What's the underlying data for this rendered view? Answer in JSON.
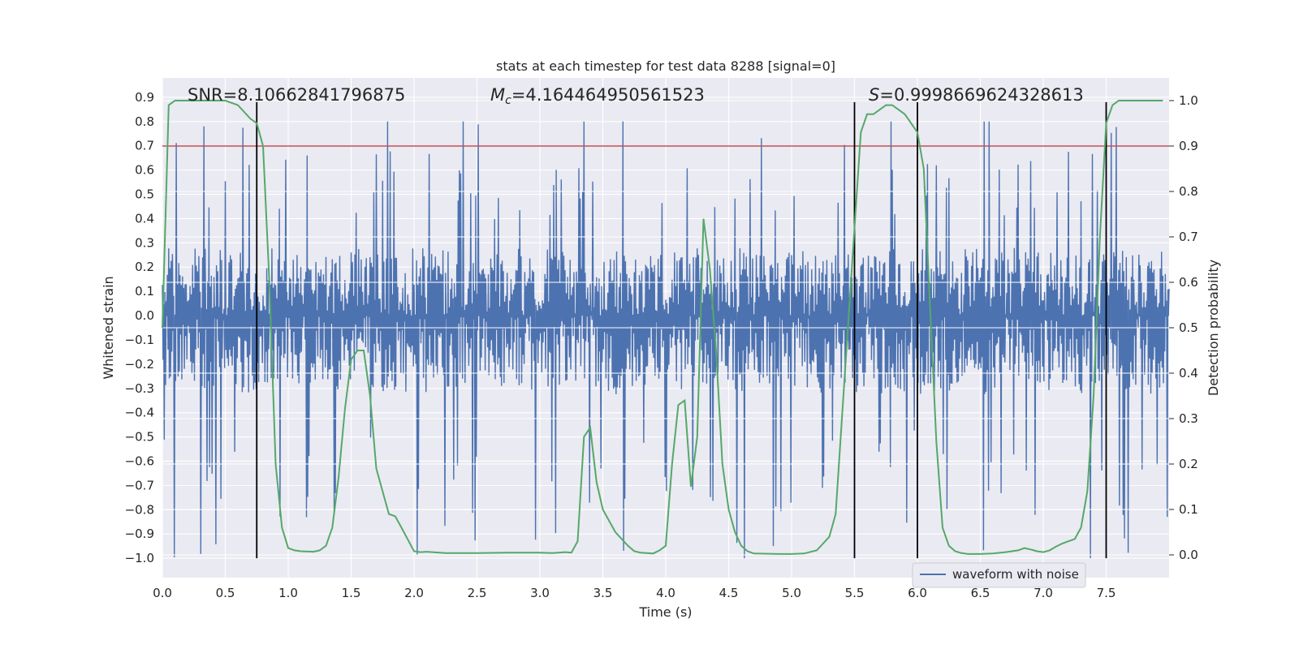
{
  "chart_data": {
    "type": "line",
    "title": "stats at each timestep for test data 8288 [signal=0]",
    "xlabel": "Time (s)",
    "ylabel": "Whitened strain",
    "y2label": "Detection probability",
    "xlim": [
      0,
      8
    ],
    "ylim": [
      -1.08,
      0.98
    ],
    "y2lim": [
      -0.05,
      1.05
    ],
    "xticks": [
      0.0,
      0.5,
      1.0,
      1.5,
      2.0,
      2.5,
      3.0,
      3.5,
      4.0,
      4.5,
      5.0,
      5.5,
      6.0,
      6.5,
      7.0,
      7.5
    ],
    "xtick_labels": [
      "0.0",
      "0.5",
      "1.0",
      "1.5",
      "2.0",
      "2.5",
      "3.0",
      "3.5",
      "4.0",
      "4.5",
      "5.0",
      "5.5",
      "6.0",
      "6.5",
      "7.0",
      "7.5"
    ],
    "yticks": [
      0.9,
      0.8,
      0.7,
      0.6,
      0.5,
      0.4,
      0.3,
      0.2,
      0.1,
      0.0,
      -0.1,
      -0.2,
      -0.3,
      -0.4,
      -0.5,
      -0.6,
      -0.7,
      -0.8,
      -0.9,
      -1.0
    ],
    "ytick_labels": [
      "0.9",
      "0.8",
      "0.7",
      "0.6",
      "0.5",
      "0.4",
      "0.3",
      "0.2",
      "0.1",
      "0.0",
      "−0.1",
      "−0.2",
      "−0.3",
      "−0.4",
      "−0.5",
      "−0.6",
      "−0.7",
      "−0.8",
      "−0.9",
      "−1.0"
    ],
    "y2ticks": [
      1.0,
      0.9,
      0.8,
      0.7,
      0.6,
      0.5,
      0.4,
      0.3,
      0.2,
      0.1,
      0.0
    ],
    "y2tick_labels": [
      "1.0",
      "0.9",
      "0.8",
      "0.7",
      "0.6",
      "0.5",
      "0.4",
      "0.3",
      "0.2",
      "0.1",
      "0.0"
    ],
    "grid": true,
    "legend": {
      "entries": [
        "waveform with noise"
      ],
      "placement": "lower-right"
    },
    "annotations": {
      "snr": "SNR=8.10662841796875",
      "mc_symbol": "M",
      "mc_sub": "c",
      "mc_value": "=4.164464950561523",
      "s_symbol": "S",
      "s_value": "=0.9998669624328613"
    },
    "threshold": {
      "value": 0.9,
      "axis": "right",
      "color": "#c44e52"
    },
    "vlines": [
      0.75,
      5.5,
      6.0,
      7.5
    ],
    "vline_range_left_axis": [
      -1.0,
      0.88
    ],
    "waveform": {
      "name": "waveform with noise",
      "color": "#4c72b0",
      "noise_band": [
        -0.31,
        0.29
      ],
      "extreme_range": [
        -1.0,
        0.8
      ]
    },
    "probability": {
      "name": "detection probability",
      "color": "#55a868",
      "t": [
        0.0,
        0.05,
        0.1,
        0.15,
        0.2,
        0.3,
        0.4,
        0.5,
        0.6,
        0.7,
        0.75,
        0.8,
        0.85,
        0.9,
        0.95,
        1.0,
        1.05,
        1.1,
        1.2,
        1.25,
        1.3,
        1.35,
        1.4,
        1.45,
        1.5,
        1.55,
        1.6,
        1.65,
        1.7,
        1.8,
        1.85,
        1.9,
        2.0,
        2.05,
        2.1,
        2.25,
        2.5,
        2.75,
        3.0,
        3.1,
        3.2,
        3.25,
        3.3,
        3.35,
        3.4,
        3.45,
        3.5,
        3.6,
        3.7,
        3.75,
        3.8,
        3.9,
        3.95,
        4.0,
        4.05,
        4.1,
        4.15,
        4.2,
        4.25,
        4.3,
        4.35,
        4.4,
        4.45,
        4.5,
        4.55,
        4.6,
        4.65,
        4.7,
        4.9,
        5.0,
        5.1,
        5.2,
        5.25,
        5.3,
        5.35,
        5.4,
        5.5,
        5.55,
        5.6,
        5.65,
        5.7,
        5.75,
        5.8,
        5.85,
        5.9,
        5.95,
        6.0,
        6.05,
        6.1,
        6.15,
        6.2,
        6.25,
        6.3,
        6.35,
        6.4,
        6.5,
        6.6,
        6.7,
        6.8,
        6.85,
        6.9,
        6.95,
        7.0,
        7.05,
        7.1,
        7.15,
        7.2,
        7.25,
        7.3,
        7.35,
        7.4,
        7.45,
        7.5,
        7.55,
        7.6,
        7.7,
        7.8,
        7.95
      ],
      "p": [
        0.5,
        0.99,
        1.0,
        1.0,
        1.0,
        1.0,
        1.0,
        1.0,
        0.99,
        0.96,
        0.95,
        0.9,
        0.6,
        0.2,
        0.06,
        0.015,
        0.01,
        0.008,
        0.007,
        0.01,
        0.02,
        0.06,
        0.17,
        0.32,
        0.43,
        0.45,
        0.45,
        0.35,
        0.19,
        0.09,
        0.085,
        0.06,
        0.008,
        0.006,
        0.007,
        0.004,
        0.004,
        0.005,
        0.005,
        0.004,
        0.006,
        0.005,
        0.03,
        0.26,
        0.28,
        0.16,
        0.1,
        0.05,
        0.02,
        0.008,
        0.005,
        0.003,
        0.01,
        0.02,
        0.2,
        0.33,
        0.34,
        0.15,
        0.26,
        0.74,
        0.63,
        0.45,
        0.2,
        0.1,
        0.05,
        0.02,
        0.008,
        0.003,
        0.002,
        0.002,
        0.003,
        0.01,
        0.025,
        0.04,
        0.09,
        0.3,
        0.72,
        0.93,
        0.97,
        0.97,
        0.98,
        0.99,
        0.99,
        0.98,
        0.97,
        0.95,
        0.93,
        0.85,
        0.55,
        0.25,
        0.06,
        0.02,
        0.008,
        0.004,
        0.002,
        0.002,
        0.003,
        0.006,
        0.01,
        0.015,
        0.012,
        0.008,
        0.006,
        0.01,
        0.018,
        0.025,
        0.03,
        0.035,
        0.06,
        0.14,
        0.35,
        0.7,
        0.95,
        0.99,
        1.0,
        1.0,
        1.0,
        1.0
      ]
    }
  }
}
